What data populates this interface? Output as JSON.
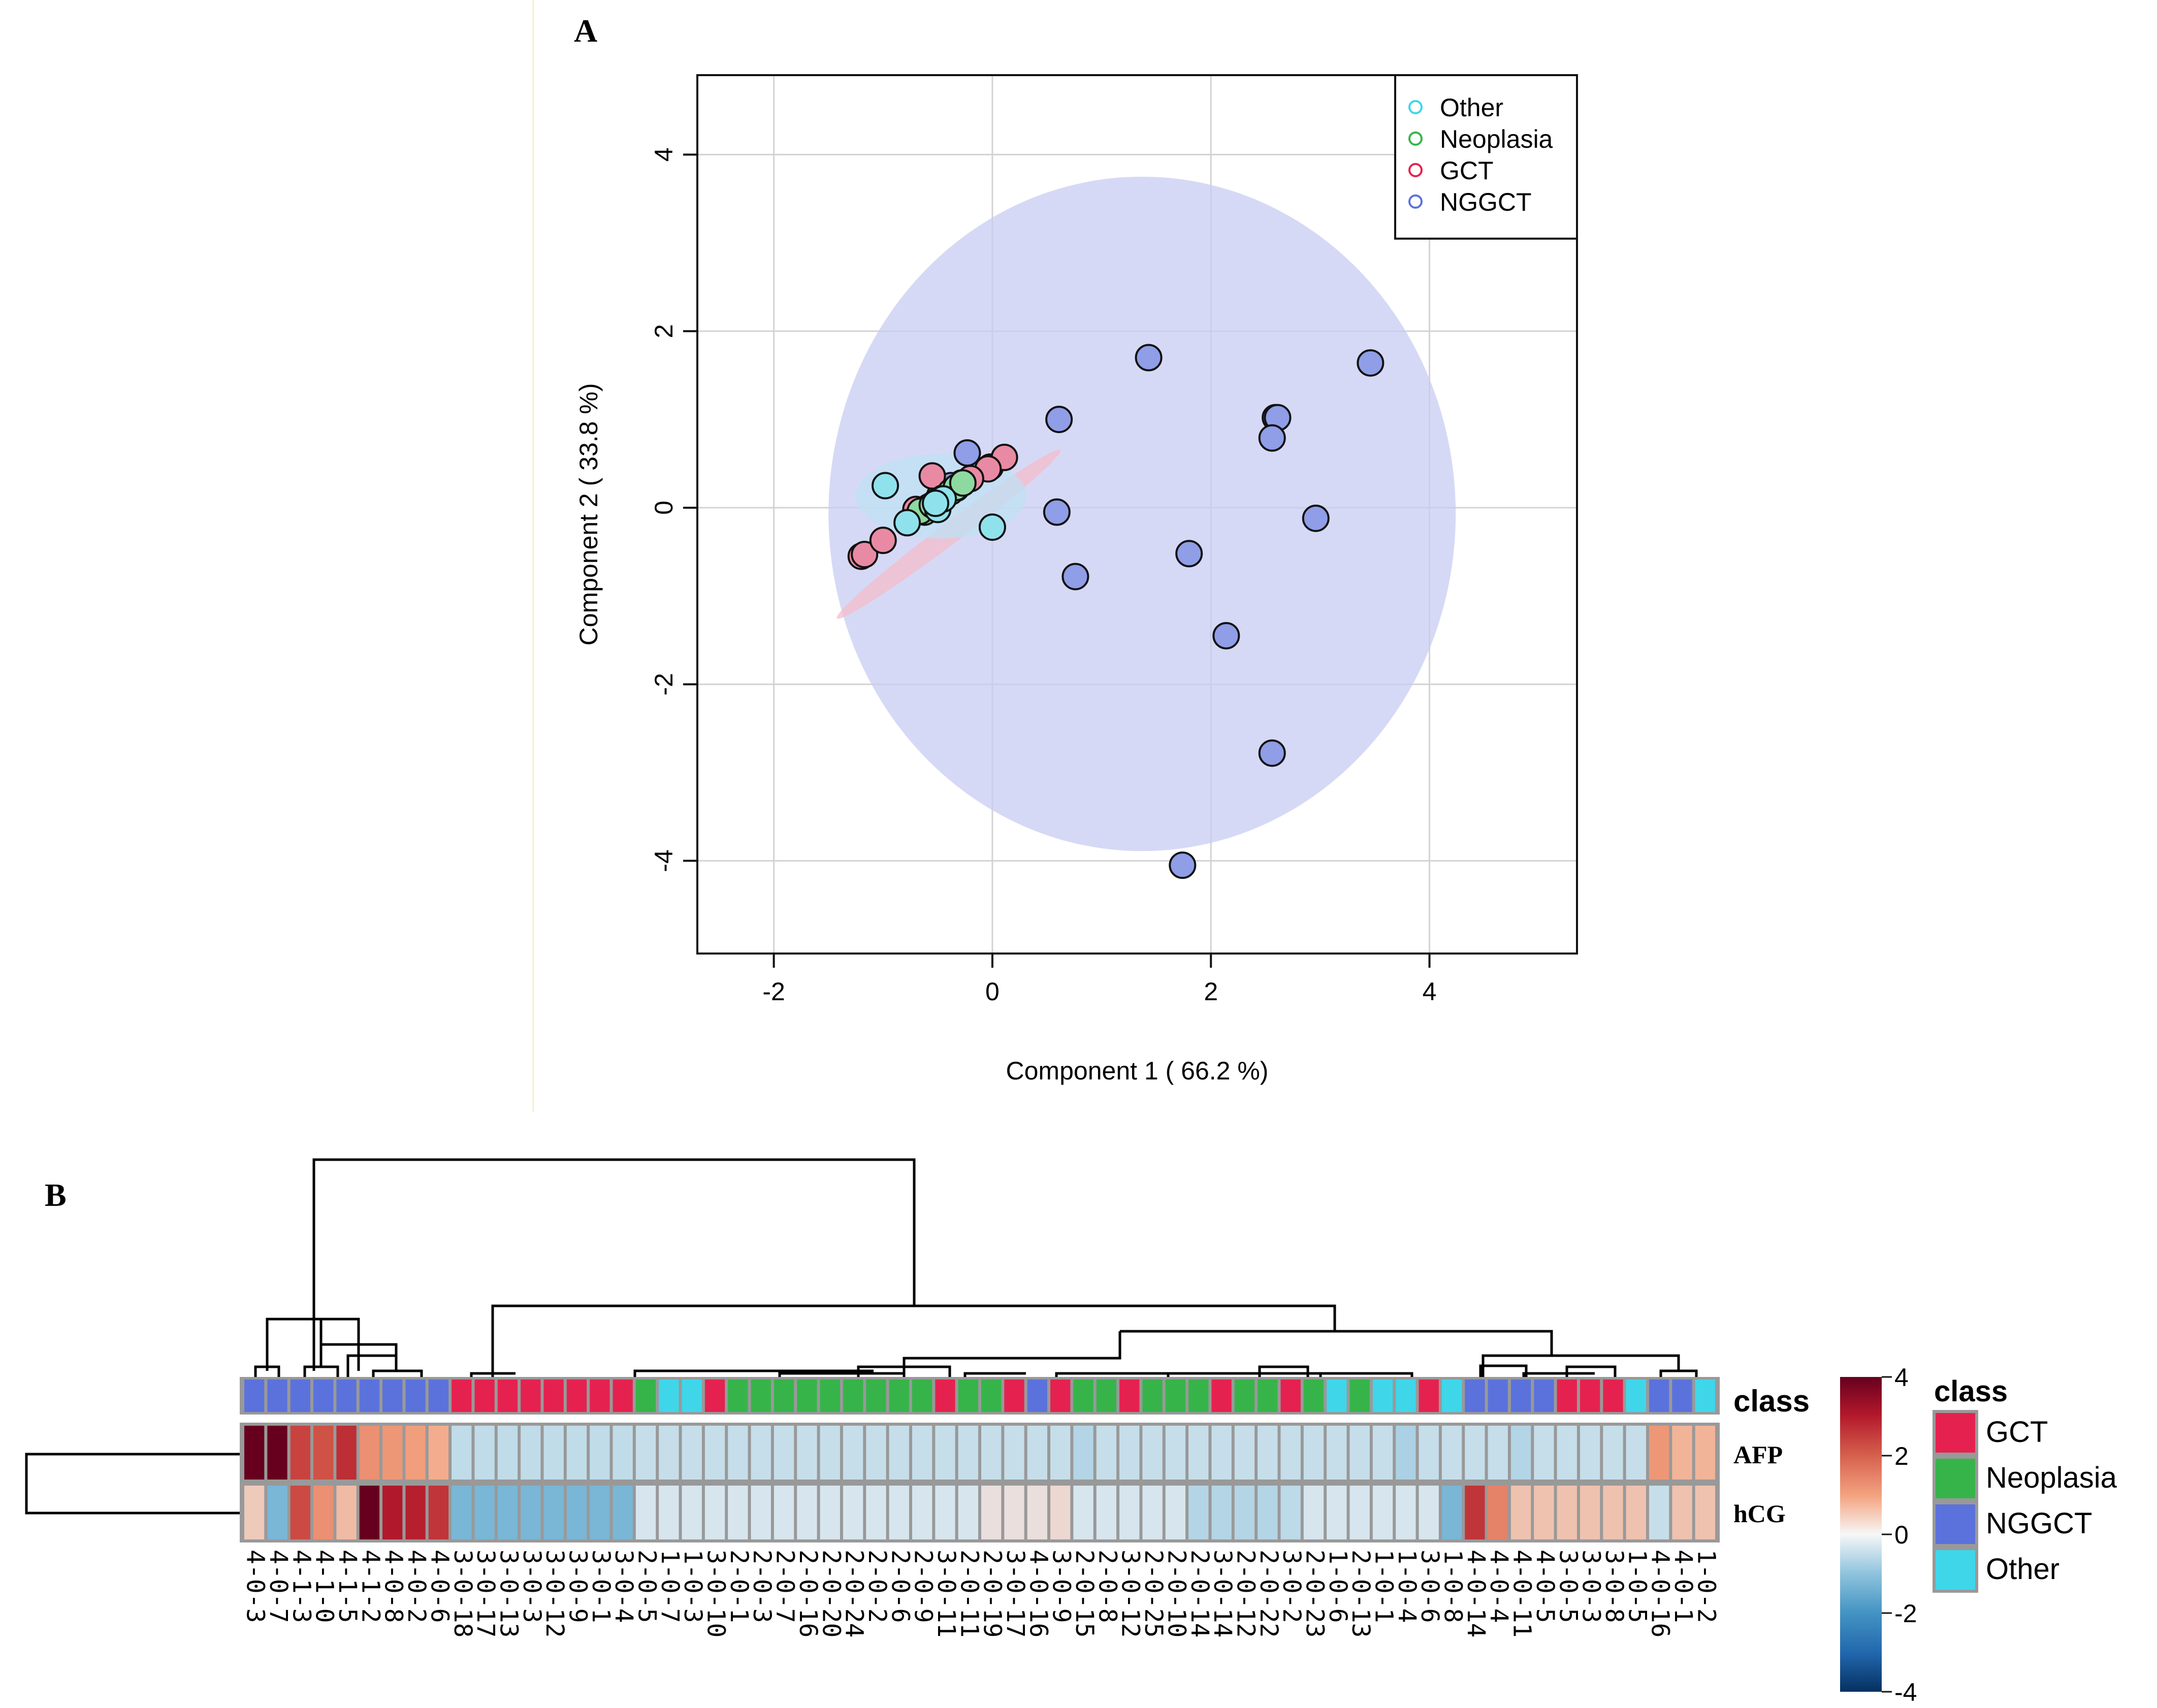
{
  "panel_a": {
    "label": "A",
    "chart_data": {
      "type": "scatter",
      "title": "",
      "xlabel": "Component 1 ( 66.2 %)",
      "ylabel": "Component 2 ( 33.8 %)",
      "xlim": [
        -2.7,
        5.35
      ],
      "ylim": [
        -5.05,
        4.9
      ],
      "xticks": [
        -2,
        0,
        2,
        4
      ],
      "yticks": [
        -4,
        -2,
        0,
        2,
        4
      ],
      "grid": true,
      "legend_position": "top-right",
      "legend": [
        "Other",
        "Neoplasia",
        "GCT",
        "NGGCT"
      ],
      "colors": {
        "Other": "#3fd6ea",
        "Neoplasia": "#36b44a",
        "GCT": "#e5224f",
        "NGGCT": "#5b72dc"
      },
      "ellipses": [
        {
          "group": "NGGCT",
          "cx": 1.37,
          "cy": -0.07,
          "rx": 2.87,
          "ry": 3.82,
          "angle": 0,
          "color": "#c8ccf2"
        },
        {
          "group": "GCT",
          "cx": -0.4,
          "cy": -0.3,
          "rx": 1.28,
          "ry": 0.12,
          "angle": 37,
          "color": "#f3bccb"
        },
        {
          "group": "Other",
          "cx": -0.47,
          "cy": 0.13,
          "rx": 0.78,
          "ry": 0.48,
          "angle": 0,
          "color": "#bfe0f3"
        }
      ],
      "series": [
        {
          "name": "NGGCT",
          "color": "#8f9ee6",
          "points": [
            [
              1.43,
              1.7
            ],
            [
              3.46,
              1.64
            ],
            [
              2.59,
              1.02
            ],
            [
              2.61,
              1.02
            ],
            [
              0.61,
              1.0
            ],
            [
              2.56,
              0.79
            ],
            [
              -0.23,
              0.62
            ],
            [
              0.59,
              -0.05
            ],
            [
              2.96,
              -0.12
            ],
            [
              0.76,
              -0.78
            ],
            [
              1.8,
              -0.52
            ],
            [
              2.14,
              -1.45
            ],
            [
              2.56,
              -2.78
            ],
            [
              1.74,
              -4.05
            ],
            [
              -0.28,
              0.28
            ],
            [
              -0.38,
              0.25
            ],
            [
              -0.02,
              0.46
            ],
            [
              -0.48,
              0.14
            ]
          ]
        },
        {
          "name": "GCT",
          "color": "#e98aa4",
          "points": [
            [
              -1.2,
              -0.55
            ],
            [
              -1.17,
              -0.53
            ],
            [
              -1.0,
              -0.37
            ],
            [
              -0.55,
              0.36
            ],
            [
              0.11,
              0.57
            ],
            [
              -0.04,
              0.44
            ],
            [
              -0.33,
              0.22
            ],
            [
              -0.2,
              0.33
            ],
            [
              -0.7,
              -0.02
            ]
          ]
        },
        {
          "name": "Neoplasia",
          "color": "#8ed9a0",
          "points": [
            [
              -0.58,
              0.01
            ],
            [
              -0.62,
              -0.05
            ],
            [
              -0.52,
              0.06
            ],
            [
              -0.45,
              0.11
            ],
            [
              -0.38,
              0.18
            ],
            [
              -0.33,
              0.23
            ],
            [
              -0.27,
              0.28
            ],
            [
              -0.66,
              -0.04
            ],
            [
              -0.55,
              0.03
            ]
          ]
        },
        {
          "name": "Other",
          "color": "#8fe2ec",
          "points": [
            [
              -0.98,
              0.25
            ],
            [
              -0.78,
              -0.17
            ],
            [
              0.0,
              -0.22
            ],
            [
              -0.48,
              0.07
            ],
            [
              -0.5,
              -0.02
            ],
            [
              -0.45,
              0.1
            ],
            [
              -0.52,
              0.05
            ]
          ]
        }
      ]
    }
  },
  "panel_b": {
    "label": "B",
    "chart_data": {
      "type": "heatmap",
      "rows": [
        "AFP",
        "hCG"
      ],
      "annotation_label": "class",
      "legend_title": "class",
      "legend_classes": [
        "GCT",
        "Neoplasia",
        "NGGCT",
        "Other"
      ],
      "class_colors": {
        "GCT": "#e5224f",
        "Neoplasia": "#36b44a",
        "NGGCT": "#5b72dc",
        "Other": "#3fd6ea"
      },
      "colorbar_ticks": [
        4,
        2,
        0,
        -2,
        -4
      ],
      "colorbar_range": [
        -4,
        4
      ],
      "columns": [
        {
          "label": "4-0-3",
          "class": "NGGCT",
          "afp": 4.0,
          "hcg": 0.5
        },
        {
          "label": "4-0-7",
          "class": "NGGCT",
          "afp": 4.2,
          "hcg": -1.3
        },
        {
          "label": "4-1-3",
          "class": "NGGCT",
          "afp": 2.4,
          "hcg": 2.3
        },
        {
          "label": "4-1-0",
          "class": "NGGCT",
          "afp": 2.2,
          "hcg": 1.3
        },
        {
          "label": "4-1-5",
          "class": "NGGCT",
          "afp": 2.7,
          "hcg": 0.7
        },
        {
          "label": "4-1-2",
          "class": "NGGCT",
          "afp": 1.3,
          "hcg": 4.0
        },
        {
          "label": "4-0-8",
          "class": "NGGCT",
          "afp": 1.2,
          "hcg": 3.0
        },
        {
          "label": "4-0-2",
          "class": "NGGCT",
          "afp": 1.1,
          "hcg": 2.9
        },
        {
          "label": "4-0-6",
          "class": "NGGCT",
          "afp": 0.9,
          "hcg": 2.6
        },
        {
          "label": "3-0-18",
          "class": "GCT",
          "afp": -0.45,
          "hcg": -1.3
        },
        {
          "label": "3-0-17",
          "class": "GCT",
          "afp": -0.45,
          "hcg": -1.3
        },
        {
          "label": "3-0-13",
          "class": "GCT",
          "afp": -0.45,
          "hcg": -1.3
        },
        {
          "label": "3-0-3",
          "class": "GCT",
          "afp": -0.45,
          "hcg": -1.3
        },
        {
          "label": "3-0-12",
          "class": "GCT",
          "afp": -0.45,
          "hcg": -1.3
        },
        {
          "label": "3-0-9",
          "class": "GCT",
          "afp": -0.45,
          "hcg": -1.3
        },
        {
          "label": "3-0-1",
          "class": "GCT",
          "afp": -0.45,
          "hcg": -1.3
        },
        {
          "label": "3-0-4",
          "class": "GCT",
          "afp": -0.45,
          "hcg": -1.3
        },
        {
          "label": "2-0-5",
          "class": "Neoplasia",
          "afp": -0.4,
          "hcg": -0.2
        },
        {
          "label": "1-0-7",
          "class": "Other",
          "afp": -0.4,
          "hcg": -0.2
        },
        {
          "label": "1-0-3",
          "class": "Other",
          "afp": -0.4,
          "hcg": -0.2
        },
        {
          "label": "3-0-10",
          "class": "GCT",
          "afp": -0.4,
          "hcg": -0.2
        },
        {
          "label": "2-0-1",
          "class": "Neoplasia",
          "afp": -0.4,
          "hcg": -0.2
        },
        {
          "label": "2-0-3",
          "class": "Neoplasia",
          "afp": -0.4,
          "hcg": -0.2
        },
        {
          "label": "2-0-7",
          "class": "Neoplasia",
          "afp": -0.4,
          "hcg": -0.2
        },
        {
          "label": "2-0-16",
          "class": "Neoplasia",
          "afp": -0.4,
          "hcg": -0.2
        },
        {
          "label": "2-0-20",
          "class": "Neoplasia",
          "afp": -0.4,
          "hcg": -0.2
        },
        {
          "label": "2-0-24",
          "class": "Neoplasia",
          "afp": -0.4,
          "hcg": -0.2
        },
        {
          "label": "2-0-2",
          "class": "Neoplasia",
          "afp": -0.4,
          "hcg": -0.2
        },
        {
          "label": "2-0-6",
          "class": "Neoplasia",
          "afp": -0.4,
          "hcg": -0.2
        },
        {
          "label": "2-0-9",
          "class": "Neoplasia",
          "afp": -0.4,
          "hcg": -0.2
        },
        {
          "label": "3-0-11",
          "class": "GCT",
          "afp": -0.4,
          "hcg": -0.2
        },
        {
          "label": "2-0-11",
          "class": "Neoplasia",
          "afp": -0.4,
          "hcg": -0.2
        },
        {
          "label": "2-0-19",
          "class": "Neoplasia",
          "afp": -0.4,
          "hcg": 0.2
        },
        {
          "label": "3-0-17",
          "class": "GCT",
          "afp": -0.4,
          "hcg": 0.2
        },
        {
          "label": "4-0-16",
          "class": "NGGCT",
          "afp": -0.4,
          "hcg": 0.2
        },
        {
          "label": "3-0-9",
          "class": "GCT",
          "afp": -0.4,
          "hcg": 0.3
        },
        {
          "label": "2-0-15",
          "class": "Neoplasia",
          "afp": -0.6,
          "hcg": -0.2
        },
        {
          "label": "2-0-8",
          "class": "Neoplasia",
          "afp": -0.4,
          "hcg": -0.2
        },
        {
          "label": "3-0-12",
          "class": "GCT",
          "afp": -0.4,
          "hcg": -0.2
        },
        {
          "label": "2-0-25",
          "class": "Neoplasia",
          "afp": -0.4,
          "hcg": -0.2
        },
        {
          "label": "2-0-10",
          "class": "Neoplasia",
          "afp": -0.4,
          "hcg": -0.2
        },
        {
          "label": "2-0-14",
          "class": "Neoplasia",
          "afp": -0.4,
          "hcg": -0.6
        },
        {
          "label": "3-0-14",
          "class": "GCT",
          "afp": -0.4,
          "hcg": -0.6
        },
        {
          "label": "2-0-12",
          "class": "Neoplasia",
          "afp": -0.4,
          "hcg": -0.6
        },
        {
          "label": "2-0-22",
          "class": "Neoplasia",
          "afp": -0.4,
          "hcg": -0.6
        },
        {
          "label": "3-0-2",
          "class": "GCT",
          "afp": -0.4,
          "hcg": -0.5
        },
        {
          "label": "2-0-23",
          "class": "Neoplasia",
          "afp": -0.4,
          "hcg": -0.2
        },
        {
          "label": "1-0-6",
          "class": "Other",
          "afp": -0.4,
          "hcg": -0.2
        },
        {
          "label": "2-0-13",
          "class": "Neoplasia",
          "afp": -0.4,
          "hcg": -0.2
        },
        {
          "label": "1-0-1",
          "class": "Other",
          "afp": -0.4,
          "hcg": -0.2
        },
        {
          "label": "1-0-4",
          "class": "Other",
          "afp": -0.7,
          "hcg": -0.2
        },
        {
          "label": "3-0-6",
          "class": "GCT",
          "afp": -0.4,
          "hcg": -0.2
        },
        {
          "label": "1-0-8",
          "class": "Other",
          "afp": -0.4,
          "hcg": -1.3
        },
        {
          "label": "4-0-14",
          "class": "NGGCT",
          "afp": -0.4,
          "hcg": 2.6
        },
        {
          "label": "4-0-4",
          "class": "NGGCT",
          "afp": -0.4,
          "hcg": 1.5
        },
        {
          "label": "4-0-11",
          "class": "NGGCT",
          "afp": -0.6,
          "hcg": 0.6
        },
        {
          "label": "4-0-5",
          "class": "NGGCT",
          "afp": -0.4,
          "hcg": 0.6
        },
        {
          "label": "3-0-5",
          "class": "GCT",
          "afp": -0.4,
          "hcg": 0.6
        },
        {
          "label": "3-0-3",
          "class": "GCT",
          "afp": -0.4,
          "hcg": 0.6
        },
        {
          "label": "3-0-8",
          "class": "GCT",
          "afp": -0.4,
          "hcg": 0.6
        },
        {
          "label": "1-0-5",
          "class": "Other",
          "afp": -0.4,
          "hcg": 0.6
        },
        {
          "label": "4-0-16",
          "class": "NGGCT",
          "afp": 1.2,
          "hcg": -0.4
        },
        {
          "label": "4-0-1",
          "class": "NGGCT",
          "afp": 0.8,
          "hcg": 0.6
        },
        {
          "label": "1-0-2",
          "class": "Other",
          "afp": 0.8,
          "hcg": 0.6
        }
      ]
    }
  }
}
